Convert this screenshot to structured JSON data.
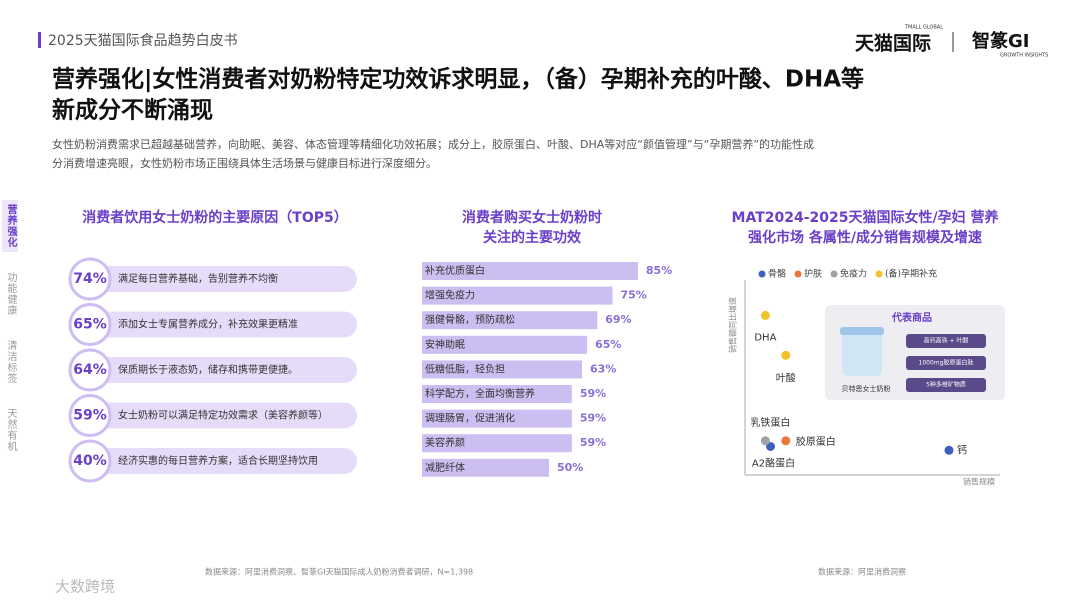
{
  "header": {
    "report": "2025天猫国际食品趋势白皮书",
    "logo1": "天猫国际",
    "logo1_sub": "TMALL GLOBAL",
    "logo2": "智篆GI",
    "logo2_sub": "GROWTH INSIGHTS"
  },
  "title": [
    "营养强化|女性消费者对奶粉特定功效诉求明显，（备）孕期补充的叶酸、DHA等",
    "新成分不断涌现"
  ],
  "description": [
    "女性奶粉消费需求已超越基础营养，向助眠、美容、体态管理等精细化功效拓展；成分上，胶原蛋白、叶酸、DHA等对应“颜值管理”与“孕期营养”的功能性成",
    "分消费增速亮眼，女性奶粉市场正围绕具体生活场景与健康目标进行深度细分。"
  ],
  "tabs": [
    "营养强化",
    "功能健康",
    "清洁标签",
    "天然有机"
  ],
  "chart_data": [
    {
      "type": "list",
      "title": [
        "消费者饮用女士奶粉的主要原因（TOP5）"
      ],
      "categories": [
        "满足每日营养基础，告别营养不均衡",
        "添加女士专属营养成分，补充效果更精准",
        "保质期长于液态奶，储存和携带更便捷。",
        "女士奶粉可以满足特定功效需求（美容养颜等）",
        "经济实惠的每日营养方案，适合长期坚持饮用"
      ],
      "values": [
        74,
        65,
        64,
        59,
        40
      ],
      "value_labels": [
        "74%",
        "65%",
        "64%",
        "59%",
        "40%"
      ],
      "color": "#6b3fc8"
    },
    {
      "type": "hbar",
      "title": [
        "消费者购买女士奶粉时",
        "关注的主要功效"
      ],
      "categories": [
        "补充优质蛋白",
        "增强免疫力",
        "强健骨骼，预防疏松",
        "安神助眠",
        "低糖低脂，轻负担",
        "科学配方，全面均衡营养",
        "调理肠胃，促进消化",
        "美容养颜",
        "减肥纤体"
      ],
      "values": [
        85,
        75,
        69,
        65,
        63,
        59,
        59,
        59,
        50
      ],
      "value_labels": [
        "85%",
        "75%",
        "69%",
        "65%",
        "63%",
        "59%",
        "59%",
        "59%",
        "50%"
      ],
      "color": "#c4b3ee",
      "xlim": [
        0,
        100
      ]
    },
    {
      "type": "scatter",
      "title": [
        "MAT2024-2025天猫国际女性/孕妇 营养",
        "强化市场 各属性/成分销售规模及增速"
      ],
      "x_label": "销售规模",
      "y_label": "销售额同比增速",
      "xlim": [
        0,
        100
      ],
      "ylim": [
        0,
        100
      ],
      "series": [
        {
          "name": "骨骼",
          "color": "#3f5fbf",
          "x": [
            10,
            80
          ],
          "values": [
            15,
            13
          ],
          "labels": [
            "A2酪蛋白",
            "钙"
          ]
        },
        {
          "name": "护肤",
          "color": "#e8793a",
          "x": [
            16
          ],
          "values": [
            18
          ],
          "labels": [
            "胶原蛋白"
          ]
        },
        {
          "name": "免疫力",
          "color": "#a0a0a8",
          "x": [
            8
          ],
          "values": [
            18
          ],
          "labels": [
            "乳铁蛋白"
          ]
        },
        {
          "name": "(备)孕期补充",
          "color": "#f2c12e",
          "x": [
            8,
            16
          ],
          "values": [
            84,
            63
          ],
          "labels": [
            "DHA",
            "叶酸"
          ]
        }
      ],
      "inset": {
        "title": "代表商品",
        "features": [
          "高钙高铁 + 叶酸",
          "1000mg胶原蛋白肽",
          "5种多维矿物质"
        ],
        "product": "贝特恩女士奶粉"
      }
    }
  ],
  "sources": [
    "数据来源：阿里消费洞察、智篆GI天猫国际成人奶粉消费者调研，N=1,398",
    "数据来源：阿里消费洞察"
  ],
  "watermark": "大数跨境"
}
